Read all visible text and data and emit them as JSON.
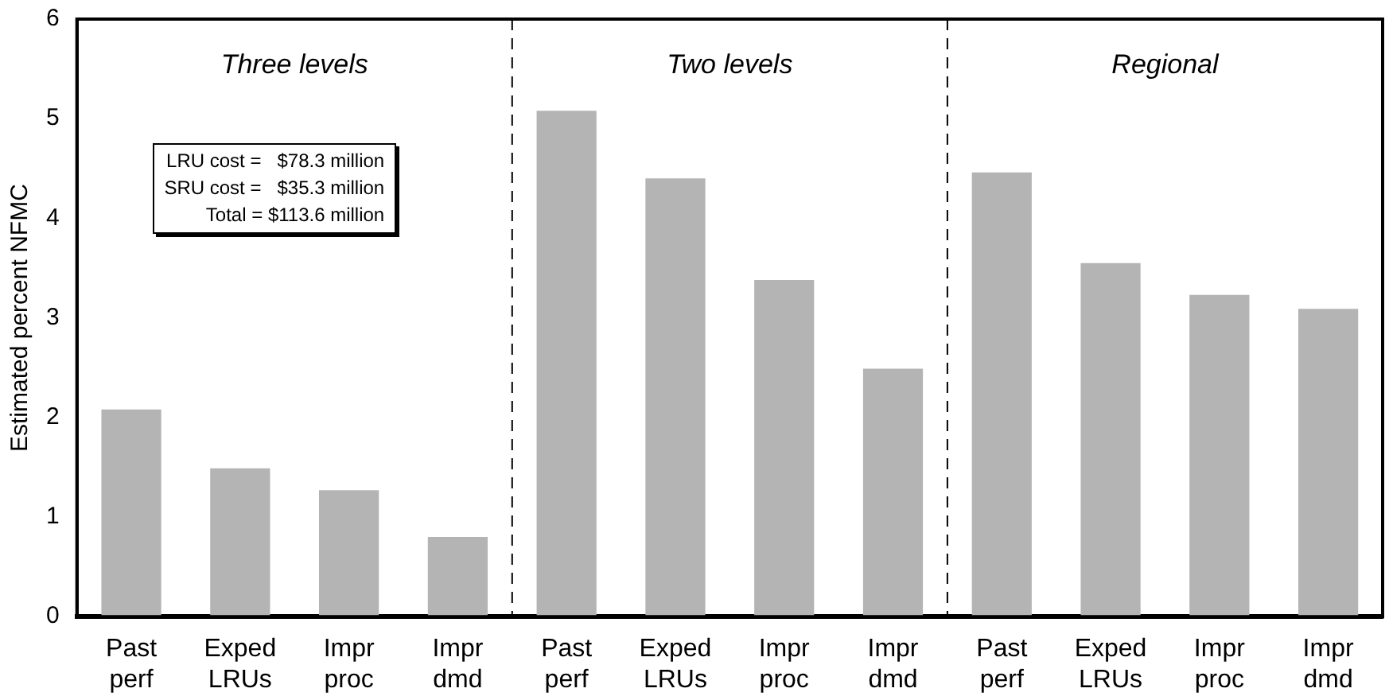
{
  "chart_data": {
    "type": "bar",
    "ylabel": "Estimated percent NFMC",
    "categories": [
      "Past\nperf",
      "Exped\nLRUs",
      "Impr\nproc",
      "Impr\ndmd",
      "Past\nperf",
      "Exped\nLRUs",
      "Impr\nproc",
      "Impr\ndmd",
      "Past\nperf",
      "Exped\nLRUs",
      "Impr\nproc",
      "Impr\ndmd"
    ],
    "values": [
      2.08,
      1.49,
      1.27,
      0.8,
      5.08,
      4.4,
      3.38,
      2.49,
      4.46,
      3.55,
      3.23,
      3.09
    ],
    "color": "#b4b4b4",
    "ylim": [
      0,
      6
    ],
    "yticks": [
      0,
      1,
      2,
      3,
      4,
      5,
      6
    ],
    "grid": false,
    "annotations": [
      "Three levels",
      "Two levels",
      "Regional",
      "LRU cost =   $78.3 million\nSRU cost =   $35.3 million\nTotal = $113.6 million"
    ]
  }
}
